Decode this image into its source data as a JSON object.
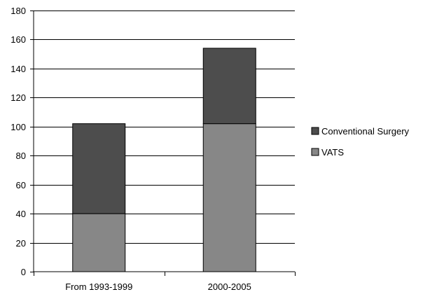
{
  "chart_data": {
    "type": "bar",
    "stacked": true,
    "categories": [
      "From 1993-1999",
      "2000-2005"
    ],
    "series": [
      {
        "name": "VATS",
        "values": [
          40,
          102
        ],
        "color": "#878787"
      },
      {
        "name": "Conventional Surgery",
        "values": [
          62,
          52
        ],
        "color": "#4d4d4d"
      }
    ],
    "legend_order": [
      "Conventional Surgery",
      "VATS"
    ],
    "legend_position": "right",
    "ylim": [
      0,
      180
    ],
    "yticks": [
      0,
      20,
      40,
      60,
      80,
      100,
      120,
      140,
      160,
      180
    ],
    "grid": true
  }
}
